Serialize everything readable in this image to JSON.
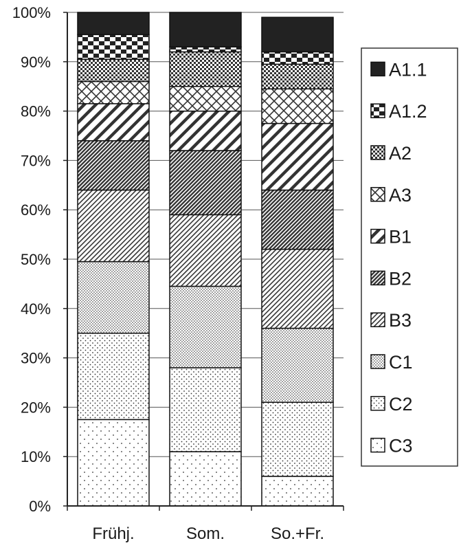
{
  "chart_data": {
    "type": "bar",
    "stacked": true,
    "percent": true,
    "categories": [
      "Frühj.",
      "Som.",
      "So.+Fr."
    ],
    "ylim": [
      0,
      100
    ],
    "yticks": [
      "0%",
      "10%",
      "20%",
      "30%",
      "40%",
      "50%",
      "60%",
      "70%",
      "80%",
      "90%",
      "100%"
    ],
    "legend_position": "right",
    "grid": "horizontal",
    "series": [
      {
        "name": "C3",
        "pattern": "sparse-dots",
        "values": [
          17.5,
          11,
          6
        ]
      },
      {
        "name": "C2",
        "pattern": "medium-dots",
        "values": [
          17.5,
          17,
          15
        ]
      },
      {
        "name": "C1",
        "pattern": "dense-dots",
        "values": [
          14.5,
          16.5,
          15
        ]
      },
      {
        "name": "B3",
        "pattern": "fine-diagonal",
        "values": [
          14.5,
          14.5,
          16
        ]
      },
      {
        "name": "B2",
        "pattern": "dense-diagonal",
        "values": [
          10,
          13,
          12
        ]
      },
      {
        "name": "B1",
        "pattern": "wide-diagonal",
        "values": [
          7.5,
          8,
          13.5
        ]
      },
      {
        "name": "A3",
        "pattern": "crosshatch",
        "values": [
          4.5,
          5,
          7
        ]
      },
      {
        "name": "A2",
        "pattern": "small-checker",
        "values": [
          4.5,
          7,
          5
        ]
      },
      {
        "name": "A1.2",
        "pattern": "checker",
        "values": [
          5,
          1,
          2.5
        ]
      },
      {
        "name": "A1.1",
        "pattern": "solid",
        "values": [
          4.5,
          7,
          7
        ]
      }
    ]
  }
}
